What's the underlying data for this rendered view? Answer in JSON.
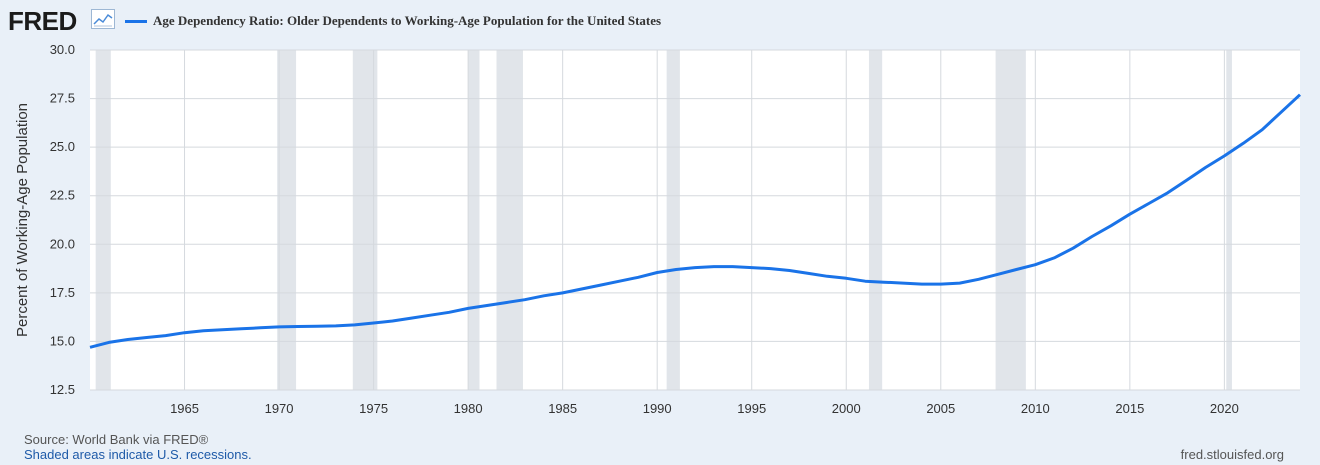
{
  "header": {
    "logo": "FRED",
    "logo_icon": "line-chart-icon",
    "legend_label": "Age Dependency Ratio: Older Dependents to Working-Age Population for the United States"
  },
  "footer": {
    "source": "Source: World Bank via FRED®",
    "recessions_note": "Shaded areas indicate U.S. recessions.",
    "url": "fred.stlouisfed.org"
  },
  "colors": {
    "line": "#1a73e8",
    "recession": "#e1e5ea",
    "plot_bg": "#ffffff",
    "grid": "#d5d9de"
  },
  "chart_data": {
    "type": "line",
    "title": "",
    "xlabel": "",
    "ylabel": "Percent of Working-Age Population",
    "xlim": [
      1960,
      2024
    ],
    "ylim": [
      12.5,
      30.0
    ],
    "yticks": [
      "12.5",
      "15.0",
      "17.5",
      "20.0",
      "22.5",
      "25.0",
      "27.5",
      "30.0"
    ],
    "xticks": [
      "1965",
      "1970",
      "1975",
      "1980",
      "1985",
      "1990",
      "1995",
      "2000",
      "2005",
      "2010",
      "2015",
      "2020"
    ],
    "grid": true,
    "recessions": [
      [
        1960.3,
        1961.1
      ],
      [
        1969.9,
        1970.9
      ],
      [
        1973.9,
        1975.2
      ],
      [
        1980.0,
        1980.6
      ],
      [
        1981.5,
        1982.9
      ],
      [
        1990.5,
        1991.2
      ],
      [
        2001.2,
        2001.9
      ],
      [
        2007.9,
        2009.5
      ],
      [
        2020.1,
        2020.4
      ]
    ],
    "series": [
      {
        "name": "Age Dependency Ratio: Older Dependents to Working-Age Population for the United States",
        "x": [
          1960,
          1961,
          1962,
          1963,
          1964,
          1965,
          1966,
          1967,
          1968,
          1969,
          1970,
          1971,
          1972,
          1973,
          1974,
          1975,
          1976,
          1977,
          1978,
          1979,
          1980,
          1981,
          1982,
          1983,
          1984,
          1985,
          1986,
          1987,
          1988,
          1989,
          1990,
          1991,
          1992,
          1993,
          1994,
          1995,
          1996,
          1997,
          1998,
          1999,
          2000,
          2001,
          2002,
          2003,
          2004,
          2005,
          2006,
          2007,
          2008,
          2009,
          2010,
          2011,
          2012,
          2013,
          2014,
          2015,
          2016,
          2017,
          2018,
          2019,
          2020,
          2021,
          2022,
          2023,
          2024
        ],
        "values": [
          14.7,
          14.95,
          15.1,
          15.2,
          15.3,
          15.45,
          15.55,
          15.6,
          15.65,
          15.7,
          15.75,
          15.77,
          15.78,
          15.8,
          15.85,
          15.95,
          16.05,
          16.2,
          16.35,
          16.5,
          16.7,
          16.85,
          17.0,
          17.15,
          17.35,
          17.5,
          17.7,
          17.9,
          18.1,
          18.3,
          18.55,
          18.7,
          18.8,
          18.85,
          18.85,
          18.8,
          18.75,
          18.65,
          18.5,
          18.35,
          18.25,
          18.1,
          18.05,
          18.0,
          17.95,
          17.95,
          18.0,
          18.2,
          18.45,
          18.7,
          18.95,
          19.3,
          19.8,
          20.4,
          20.95,
          21.55,
          22.1,
          22.65,
          23.3,
          23.95,
          24.55,
          25.2,
          25.9,
          26.8,
          27.7
        ]
      }
    ]
  }
}
